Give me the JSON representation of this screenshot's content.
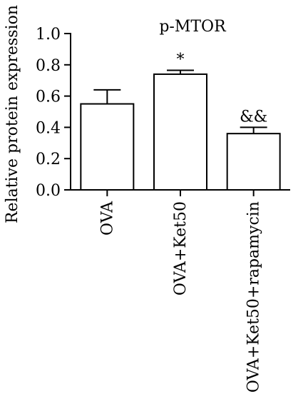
{
  "chart_data": {
    "type": "bar",
    "title": "p-MTOR",
    "xlabel": "",
    "ylabel": "Relative protein expression",
    "ylim": [
      0,
      1.0
    ],
    "yticks": [
      "0.0",
      "0.2",
      "0.4",
      "0.6",
      "0.8",
      "1.0"
    ],
    "ytick_values": [
      0,
      0.2,
      0.4,
      0.6,
      0.8,
      1.0
    ],
    "categories": [
      "OVA",
      "OVA+Ket50",
      "OVA+Ket50+rapamycin"
    ],
    "values": [
      0.55,
      0.74,
      0.36
    ],
    "errors": [
      0.09,
      0.025,
      0.04
    ],
    "annotations": [
      "",
      "*",
      "&&"
    ],
    "grid": false,
    "bar_color": "#ffffff",
    "edge_color": "#000000"
  }
}
